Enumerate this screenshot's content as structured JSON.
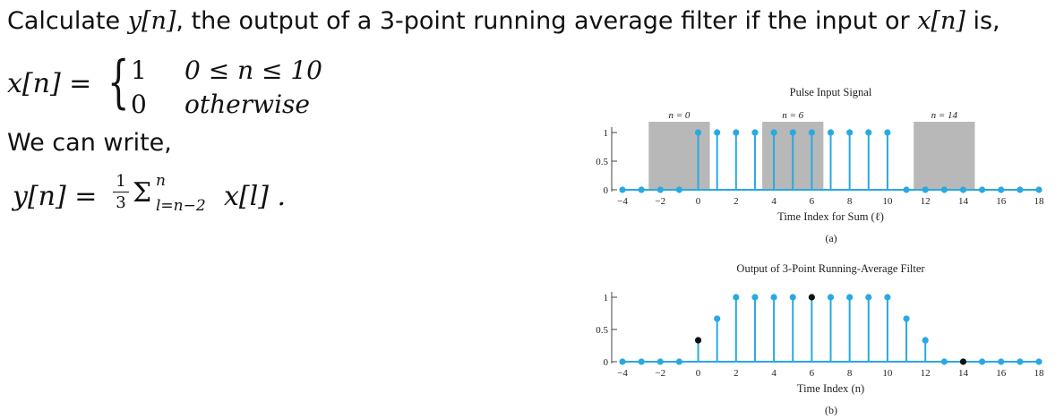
{
  "question": {
    "part1": "Calculate ",
    "yn": "y[n]",
    "part2": ", the output of a 3-point running average filter if the input or ",
    "xn": "x[n]",
    "part3": " is,"
  },
  "piecewise": {
    "lhs": "x[n] =",
    "row1_value": "1",
    "row1_condition": "0 ≤ n ≤ 10",
    "row2_value": "0",
    "row2_condition": "otherwise"
  },
  "we_can_write": "We can write,",
  "formula": {
    "lhs": "y[n] =",
    "frac_num": "1",
    "frac_den": "3",
    "sigma": "Σ",
    "upper": "n",
    "lower": "l=n−2",
    "term": "x[l] ."
  },
  "figure_a_caption": "(a)",
  "figure_b_caption": "(b)",
  "chart_data": [
    {
      "type": "stem",
      "title": "Pulse Input Signal",
      "xlabel": "Time Index for Sum (ℓ)",
      "ylabel": "",
      "xlim": [
        -4,
        18
      ],
      "ylim": [
        0,
        1
      ],
      "x_ticks": [
        -4,
        -2,
        0,
        2,
        4,
        6,
        8,
        10,
        12,
        14,
        16,
        18
      ],
      "y_ticks": [
        0,
        0.5,
        1
      ],
      "x": [
        -4,
        -3,
        -2,
        -1,
        0,
        1,
        2,
        3,
        4,
        5,
        6,
        7,
        8,
        9,
        10,
        11,
        12,
        13,
        14,
        15,
        16,
        17,
        18
      ],
      "values": [
        0,
        0,
        0,
        0,
        1,
        1,
        1,
        1,
        1,
        1,
        1,
        1,
        1,
        1,
        1,
        0,
        0,
        0,
        0,
        0,
        0,
        0,
        0
      ],
      "color": "#29a9e1",
      "windows": [
        {
          "label": "n = 0",
          "from": -2,
          "to": 0
        },
        {
          "label": "n = 6",
          "from": 4,
          "to": 6
        },
        {
          "label": "n = 14",
          "from": 12,
          "to": 14
        }
      ],
      "window_color": "#b8b8b8"
    },
    {
      "type": "stem",
      "title": "Output of 3-Point Running-Average Filter",
      "xlabel": "Time Index (n)",
      "ylabel": "",
      "xlim": [
        -4,
        18
      ],
      "ylim": [
        0,
        1
      ],
      "x_ticks": [
        -4,
        -2,
        0,
        2,
        4,
        6,
        8,
        10,
        12,
        14,
        16,
        18
      ],
      "y_ticks": [
        0,
        0.5,
        1
      ],
      "x": [
        -4,
        -3,
        -2,
        -1,
        0,
        1,
        2,
        3,
        4,
        5,
        6,
        7,
        8,
        9,
        10,
        11,
        12,
        13,
        14,
        15,
        16,
        17,
        18
      ],
      "values": [
        0,
        0,
        0,
        0,
        0.333,
        0.667,
        1,
        1,
        1,
        1,
        1,
        1,
        1,
        1,
        1,
        0.667,
        0.333,
        0,
        0,
        0,
        0,
        0,
        0
      ],
      "color": "#29a9e1",
      "highlight_x": [
        0,
        6,
        14
      ],
      "highlight_color": "#111111"
    }
  ]
}
